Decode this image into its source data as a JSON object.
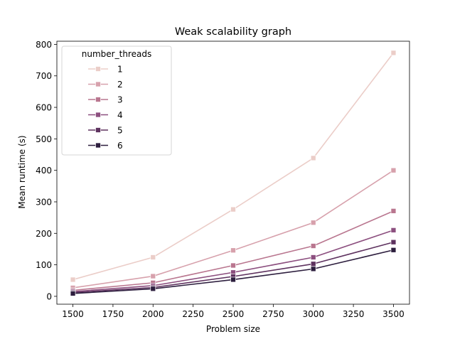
{
  "chart_data": {
    "type": "line",
    "title": "Weak scalability graph",
    "xlabel": "Problem size",
    "ylabel": "Mean runtime (s)",
    "x": [
      1500,
      2000,
      2500,
      3000,
      3500
    ],
    "xlim": [
      1400,
      3600
    ],
    "ylim": [
      -25,
      810
    ],
    "xticks": [
      1500,
      1750,
      2000,
      2250,
      2500,
      2750,
      3000,
      3250,
      3500
    ],
    "yticks": [
      0,
      100,
      200,
      300,
      400,
      500,
      600,
      700,
      800
    ],
    "grid": false,
    "legend": {
      "title": "number_threads",
      "placement": "top-left"
    },
    "marker": "square",
    "series": [
      {
        "name": "1",
        "color": "#ebcdc8",
        "values": [
          53,
          124,
          276,
          439,
          773
        ]
      },
      {
        "name": "2",
        "color": "#d7a1ac",
        "values": [
          27,
          64,
          146,
          234,
          400
        ]
      },
      {
        "name": "3",
        "color": "#b9768f",
        "values": [
          19,
          43,
          98,
          160,
          271
        ]
      },
      {
        "name": "4",
        "color": "#8c4f7f",
        "values": [
          15,
          34,
          76,
          124,
          210
        ]
      },
      {
        "name": "5",
        "color": "#5e325f",
        "values": [
          12,
          28,
          63,
          103,
          172
        ]
      },
      {
        "name": "6",
        "color": "#2d1e3e",
        "values": [
          9,
          24,
          53,
          87,
          147
        ]
      }
    ]
  }
}
